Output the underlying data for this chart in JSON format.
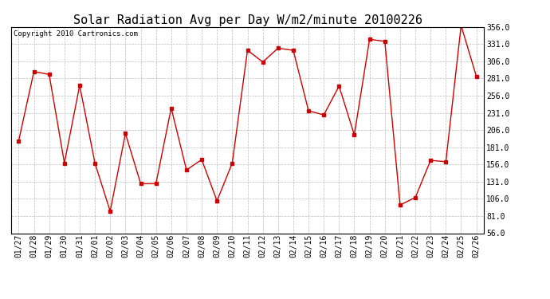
{
  "title": "Solar Radiation Avg per Day W/m2/minute 20100226",
  "copyright": "Copyright 2010 Cartronics.com",
  "dates": [
    "01/27",
    "01/28",
    "01/29",
    "01/30",
    "01/31",
    "02/01",
    "02/02",
    "02/03",
    "02/04",
    "02/05",
    "02/06",
    "02/07",
    "02/08",
    "02/09",
    "02/10",
    "02/11",
    "02/12",
    "02/13",
    "02/14",
    "02/15",
    "02/16",
    "02/17",
    "02/18",
    "02/19",
    "02/20",
    "02/21",
    "02/22",
    "02/23",
    "02/24",
    "02/25",
    "02/26"
  ],
  "values": [
    190,
    291,
    287,
    158,
    271,
    158,
    88,
    201,
    128,
    128,
    238,
    148,
    163,
    103,
    158,
    322,
    305,
    325,
    322,
    234,
    228,
    270,
    199,
    338,
    335,
    97,
    108,
    162,
    160,
    358,
    284
  ],
  "line_color": "#cc0000",
  "marker_color": "#cc0000",
  "bg_color": "#ffffff",
  "grid_color": "#bbbbbb",
  "ylim_min": 56.0,
  "ylim_max": 356.0,
  "yticks": [
    56.0,
    81.0,
    106.0,
    131.0,
    156.0,
    181.0,
    206.0,
    231.0,
    256.0,
    281.0,
    306.0,
    331.0,
    356.0
  ],
  "title_fontsize": 11,
  "copyright_fontsize": 6.5,
  "tick_fontsize": 7,
  "ytick_fontsize": 7
}
